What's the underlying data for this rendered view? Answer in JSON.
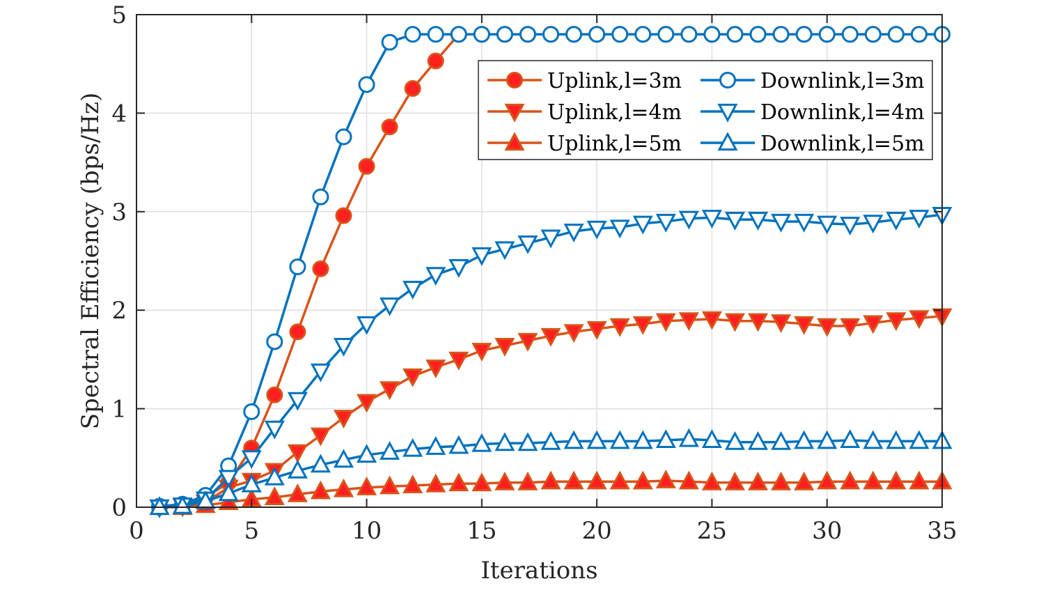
{
  "chart_data": {
    "type": "line",
    "title": "",
    "xlabel": "Iterations",
    "ylabel": "Spectral Efficiency (bps/Hz)",
    "xlim": [
      0,
      35
    ],
    "ylim": [
      0,
      5
    ],
    "xticks": [
      0,
      5,
      10,
      15,
      20,
      25,
      30,
      35
    ],
    "yticks": [
      0,
      1,
      2,
      3,
      4,
      5
    ],
    "grid": true,
    "legend_position": "top-right",
    "legend_columns": 2,
    "x": [
      1,
      2,
      3,
      4,
      5,
      6,
      7,
      8,
      9,
      10,
      11,
      12,
      13,
      14,
      15,
      16,
      17,
      18,
      19,
      20,
      21,
      22,
      23,
      24,
      25,
      26,
      27,
      28,
      29,
      30,
      31,
      32,
      33,
      34,
      35
    ],
    "series": [
      {
        "name": "Uplink,l=3m",
        "color": "#D95319",
        "marker": "circle-filled",
        "values": [
          0.0,
          0.02,
          0.1,
          0.25,
          0.6,
          1.14,
          1.78,
          2.42,
          2.96,
          3.46,
          3.86,
          4.25,
          4.53,
          4.8,
          4.8,
          4.8,
          4.8,
          4.8,
          4.8,
          4.8,
          4.8,
          4.8,
          4.8,
          4.8,
          4.8,
          4.8,
          4.8,
          4.8,
          4.8,
          4.8,
          4.8,
          4.8,
          4.8,
          4.8,
          4.8
        ]
      },
      {
        "name": "Uplink,l=4m",
        "color": "#D95319",
        "marker": "triangle-down-filled",
        "values": [
          0.0,
          0.01,
          0.05,
          0.2,
          0.27,
          0.37,
          0.56,
          0.73,
          0.91,
          1.07,
          1.2,
          1.33,
          1.42,
          1.5,
          1.59,
          1.64,
          1.69,
          1.74,
          1.78,
          1.81,
          1.84,
          1.86,
          1.89,
          1.9,
          1.91,
          1.89,
          1.89,
          1.88,
          1.86,
          1.84,
          1.84,
          1.87,
          1.9,
          1.92,
          1.94
        ]
      },
      {
        "name": "Uplink,l=5m",
        "color": "#D95319",
        "marker": "triangle-up-filled",
        "values": [
          0.0,
          0.0,
          0.02,
          0.05,
          0.08,
          0.1,
          0.13,
          0.16,
          0.18,
          0.2,
          0.21,
          0.22,
          0.23,
          0.24,
          0.24,
          0.25,
          0.25,
          0.26,
          0.26,
          0.26,
          0.26,
          0.26,
          0.27,
          0.26,
          0.25,
          0.25,
          0.25,
          0.25,
          0.25,
          0.26,
          0.26,
          0.26,
          0.26,
          0.26,
          0.26
        ]
      },
      {
        "name": "Downlink,l=3m",
        "color": "#0072BD",
        "marker": "circle-open",
        "values": [
          0.01,
          0.03,
          0.12,
          0.42,
          0.97,
          1.68,
          2.44,
          3.15,
          3.76,
          4.29,
          4.72,
          4.8,
          4.8,
          4.8,
          4.8,
          4.8,
          4.8,
          4.8,
          4.8,
          4.8,
          4.8,
          4.8,
          4.8,
          4.8,
          4.8,
          4.8,
          4.8,
          4.8,
          4.8,
          4.8,
          4.8,
          4.8,
          4.8,
          4.8,
          4.8
        ]
      },
      {
        "name": "Downlink,l=4m",
        "color": "#0072BD",
        "marker": "triangle-down-open",
        "values": [
          0.0,
          0.02,
          0.08,
          0.3,
          0.5,
          0.8,
          1.09,
          1.38,
          1.64,
          1.86,
          2.05,
          2.22,
          2.36,
          2.44,
          2.56,
          2.62,
          2.68,
          2.74,
          2.8,
          2.83,
          2.84,
          2.88,
          2.9,
          2.93,
          2.94,
          2.92,
          2.92,
          2.9,
          2.9,
          2.88,
          2.87,
          2.89,
          2.92,
          2.94,
          2.97
        ]
      },
      {
        "name": "Downlink,l=5m",
        "color": "#0072BD",
        "marker": "triangle-up-open",
        "values": [
          0.0,
          0.01,
          0.06,
          0.14,
          0.23,
          0.3,
          0.37,
          0.43,
          0.48,
          0.53,
          0.56,
          0.59,
          0.61,
          0.62,
          0.64,
          0.65,
          0.65,
          0.66,
          0.67,
          0.67,
          0.67,
          0.67,
          0.68,
          0.69,
          0.68,
          0.66,
          0.66,
          0.66,
          0.67,
          0.67,
          0.68,
          0.67,
          0.67,
          0.67,
          0.67
        ]
      }
    ]
  }
}
